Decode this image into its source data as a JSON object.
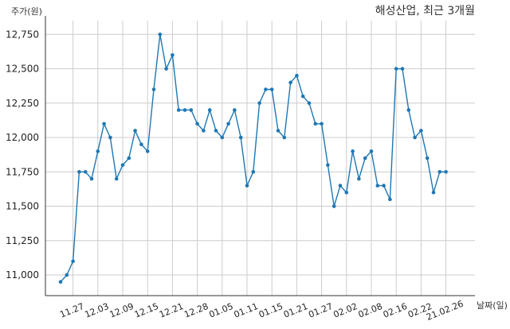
{
  "chart_data": {
    "type": "line",
    "title": "해성산업, 최근 3개월",
    "ylabel": "주가(원)",
    "xlabel": "날짜(일)",
    "ylim": [
      10850,
      12850
    ],
    "y_ticks": [
      11000,
      11250,
      11500,
      11750,
      12000,
      12250,
      12500,
      12750
    ],
    "y_tick_labels": [
      "11,000",
      "11,250",
      "11,500",
      "11,750",
      "12,000",
      "12,250",
      "12,500",
      "12,750"
    ],
    "x_tick_labels": [
      "11.27",
      "12.03",
      "12.09",
      "12.15",
      "12.21",
      "12.28",
      "01.05",
      "01.11",
      "01.15",
      "01.21",
      "01.27",
      "02.02",
      "02.08",
      "02.16",
      "02.22",
      "21.02.26"
    ],
    "x_tick_positions": [
      2,
      6,
      10,
      14,
      18,
      22,
      26,
      30,
      34,
      38,
      42,
      46,
      50,
      54,
      58,
      62
    ],
    "grid": true,
    "series": [
      {
        "color": "#1f77b4",
        "values": [
          10950,
          11000,
          11100,
          11750,
          11750,
          11700,
          11900,
          12100,
          12000,
          11700,
          11800,
          11850,
          12050,
          11950,
          11900,
          12350,
          12750,
          12500,
          12600,
          12200,
          12200,
          12200,
          12100,
          12050,
          12200,
          12050,
          12000,
          12100,
          12200,
          12000,
          11650,
          11750,
          12250,
          12350,
          12350,
          12050,
          12000,
          12400,
          12450,
          12300,
          12250,
          12100,
          12100,
          11800,
          11500,
          11650,
          11600,
          11900,
          11700,
          11850,
          11900,
          11650,
          11650,
          11550,
          12500,
          12500,
          12200,
          12000,
          12050,
          11850,
          11600,
          11750,
          11750
        ]
      }
    ]
  }
}
